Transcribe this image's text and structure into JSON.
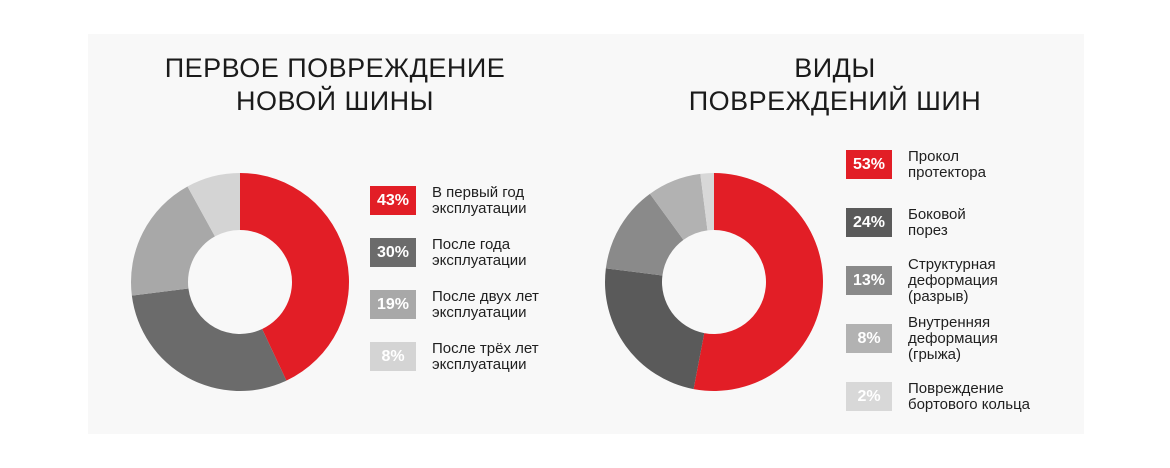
{
  "colors": {
    "red": "#e21e26",
    "dark_gray": "#5c5c5c",
    "mid_gray": "#888888",
    "light_gray": "#b4b4b4",
    "pale_gray": "#d6d6d6"
  },
  "chart_data": [
    {
      "type": "pie",
      "donut": true,
      "title": "ПЕРВОЕ ПОВРЕЖДЕНИЕ\nНОВОЙ ШИНЫ",
      "slices": [
        {
          "label": "В первый год\nэксплуатации",
          "value": 43,
          "display": "43%",
          "color": "#e21e26"
        },
        {
          "label": "После года\nэксплуатации",
          "value": 30,
          "display": "30%",
          "color": "#6b6b6b"
        },
        {
          "label": "После двух лет\nэксплуатации",
          "value": 19,
          "display": "19%",
          "color": "#a8a8a8"
        },
        {
          "label": "После трёх лет\nэксплуатации",
          "value": 8,
          "display": "8%",
          "color": "#d4d4d4"
        }
      ]
    },
    {
      "type": "pie",
      "donut": true,
      "title": "ВИДЫ\nПОВРЕЖДЕНИЙ ШИН",
      "slices": [
        {
          "label": "Прокол\nпротектора",
          "value": 53,
          "display": "53%",
          "color": "#e21e26"
        },
        {
          "label": "Боковой\nпорез",
          "value": 24,
          "display": "24%",
          "color": "#5a5a5a"
        },
        {
          "label": "Структурная\nдеформация\n(разрыв)",
          "value": 13,
          "display": "13%",
          "color": "#8a8a8a"
        },
        {
          "label": "Внутренняя\nдеформация\n(грыжа)",
          "value": 8,
          "display": "8%",
          "color": "#b2b2b2"
        },
        {
          "label": "Повреждение\nбортового кольца",
          "value": 2,
          "display": "2%",
          "color": "#d8d8d8"
        }
      ]
    }
  ]
}
